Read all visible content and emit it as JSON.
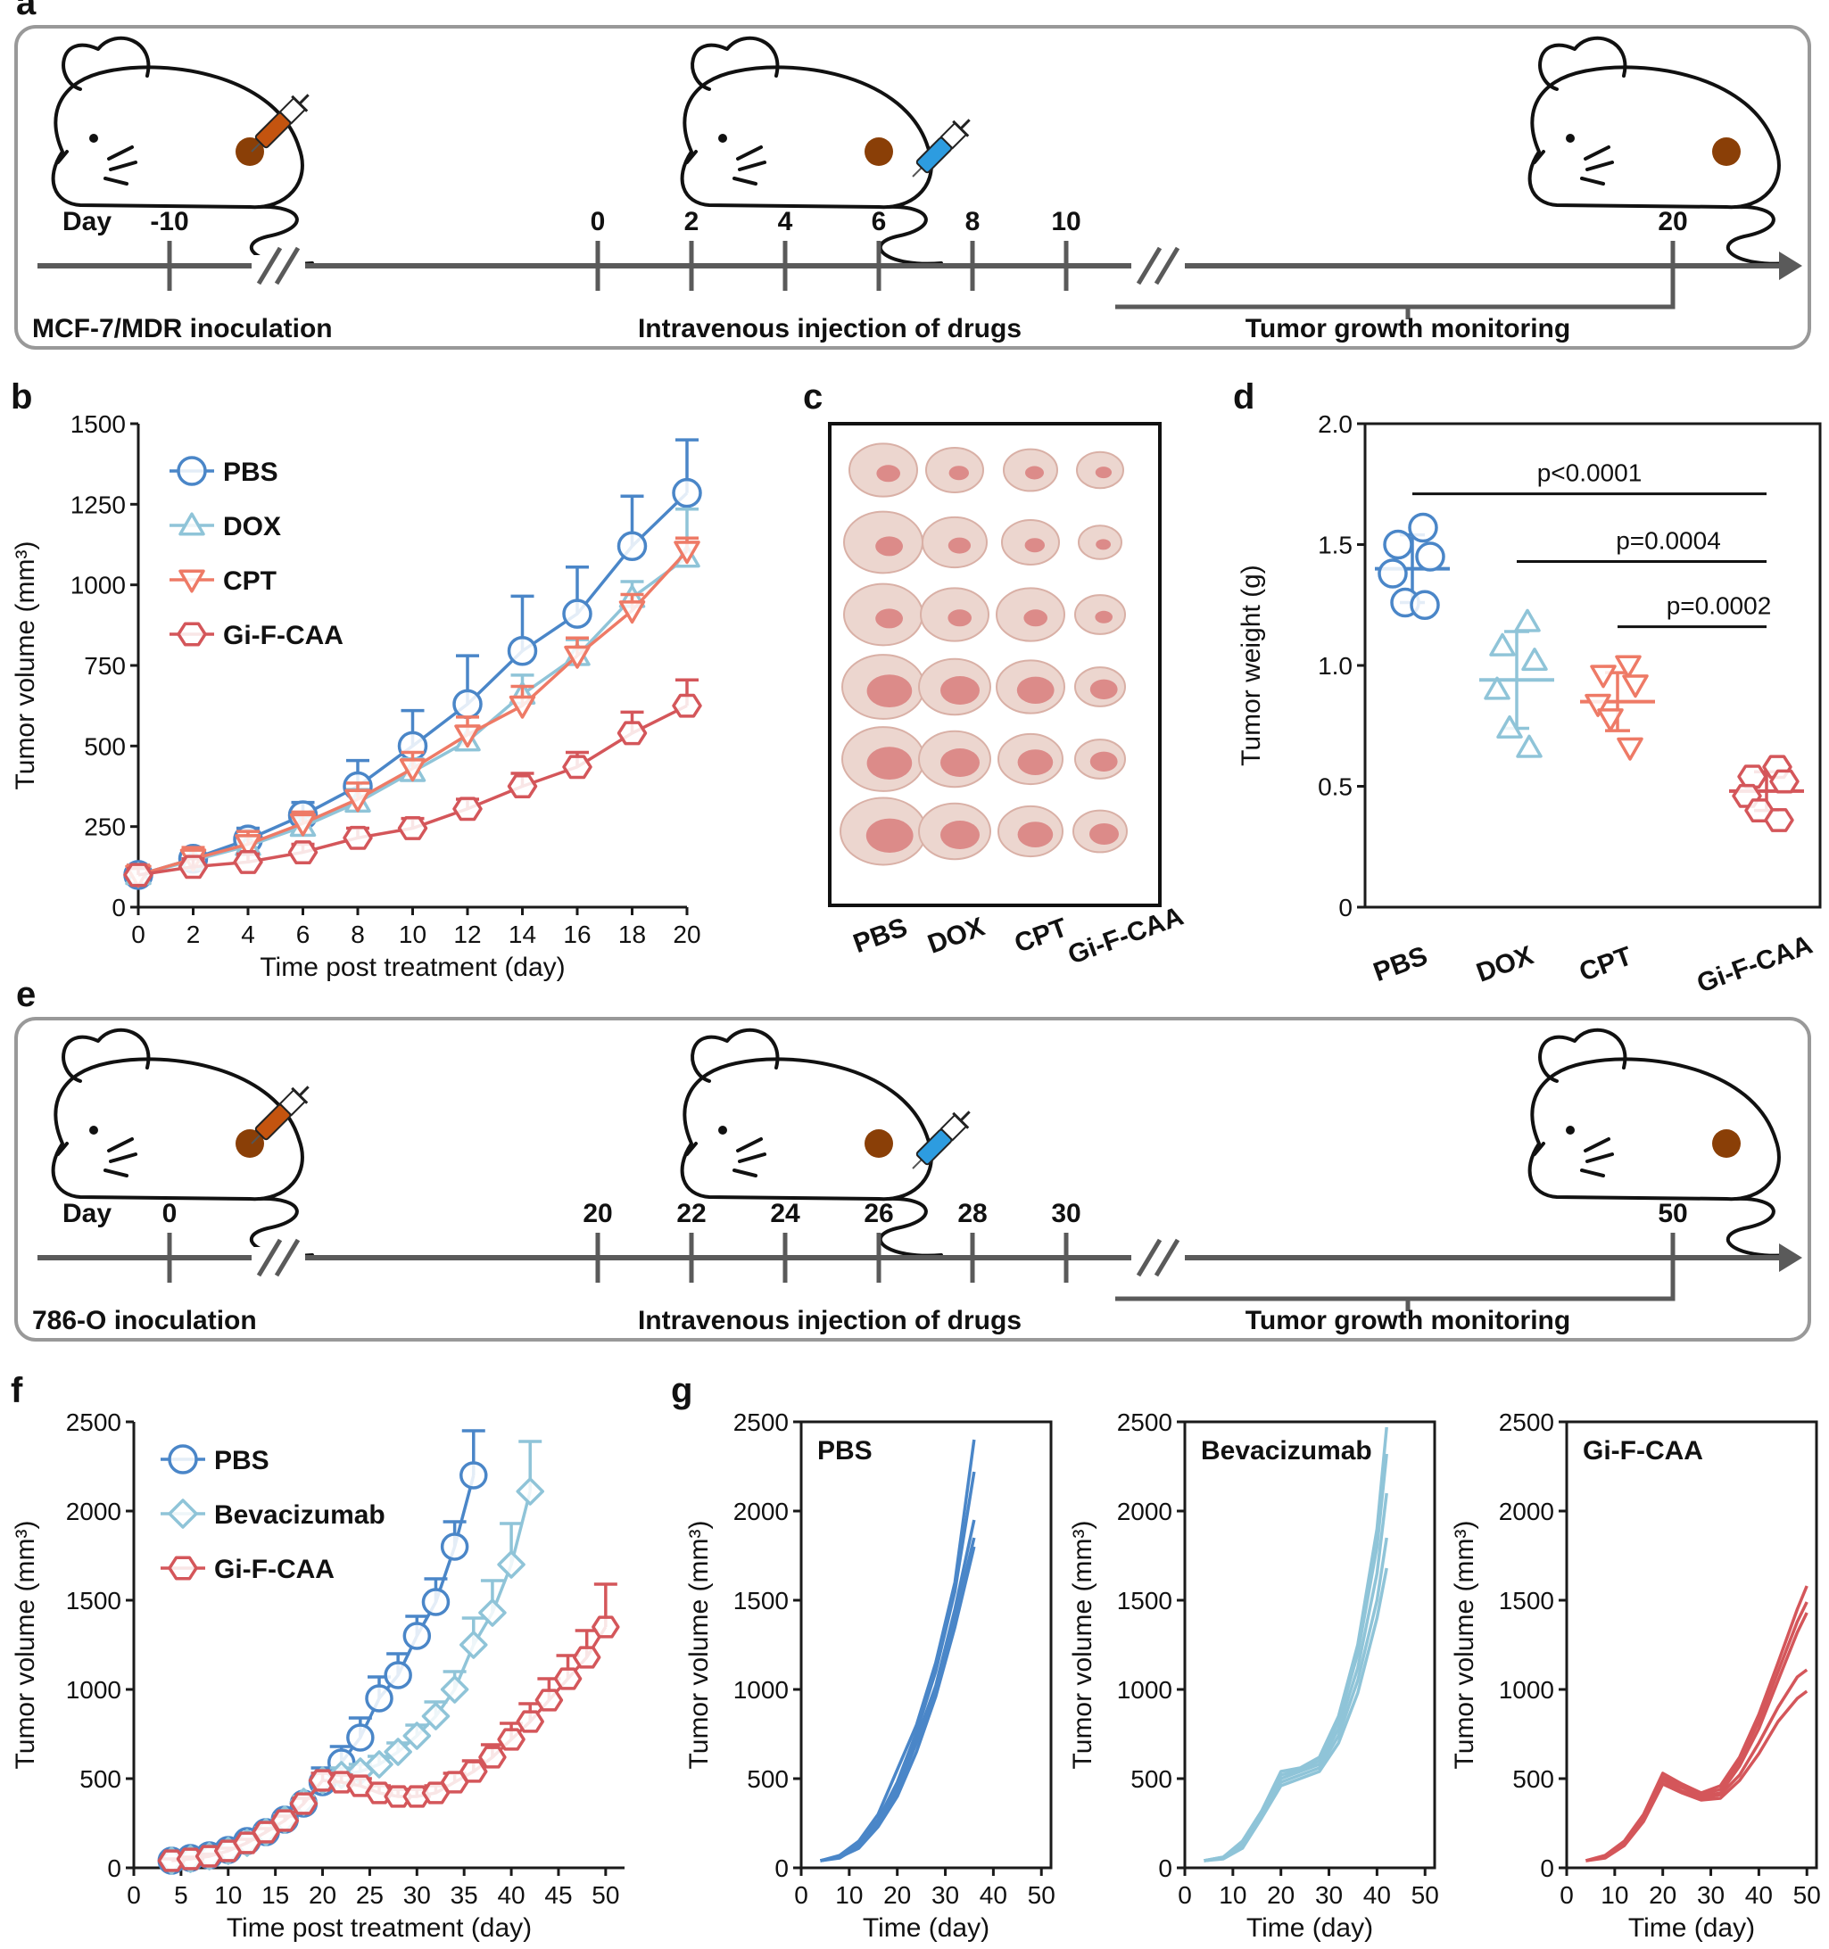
{
  "colors": {
    "pbs": "#4a86c8",
    "dox": "#8fc4d8",
    "cpt": "#ee7a66",
    "gifcaa": "#d4565a",
    "axis": "#1a1a1a",
    "timeline": "#5a5a5a",
    "box_border": "#999999",
    "tumor": "#8a3f07",
    "syringe_orange": "#c4540f",
    "syringe_blue": "#2d9ce0"
  },
  "panel_a": {
    "label": "a",
    "day_word": "Day",
    "ticks": [
      "-10",
      "0",
      "2",
      "4",
      "6",
      "8",
      "10",
      "20"
    ],
    "caption_left": "MCF-7/MDR  inoculation",
    "caption_mid": "Intravenous injection of drugs",
    "caption_right": "Tumor growth monitoring",
    "icons": [
      "mouse-icon",
      "syringe-icon",
      "tumor-icon"
    ]
  },
  "panel_e": {
    "label": "e",
    "day_word": "Day",
    "ticks": [
      "0",
      "20",
      "22",
      "24",
      "26",
      "28",
      "30",
      "50"
    ],
    "caption_left": "786-O  inoculation",
    "caption_mid": "Intravenous injection of drugs",
    "caption_right": "Tumor growth monitoring"
  },
  "panel_c": {
    "label": "c",
    "groups": [
      "PBS",
      "DOX",
      "CPT",
      "Gi-F-CAA"
    ],
    "rows": 6,
    "image": "tumor-photograph"
  },
  "chart_data": [
    {
      "panel": "b",
      "type": "line",
      "xlabel": "Time post treatment (day)",
      "ylabel": "Tumor volume (mm³)",
      "xlim": [
        0,
        20
      ],
      "ylim": [
        0,
        1500
      ],
      "xticks": [
        0,
        2,
        4,
        6,
        8,
        10,
        12,
        14,
        16,
        18,
        20
      ],
      "yticks": [
        0,
        250,
        500,
        750,
        1000,
        1250,
        1500
      ],
      "x": [
        0,
        2,
        4,
        6,
        8,
        10,
        12,
        14,
        16,
        18,
        20
      ],
      "legend_position": "top-left",
      "series": [
        {
          "name": "PBS",
          "marker": "circle",
          "color": "#4a86c8",
          "values": [
            100,
            150,
            210,
            285,
            375,
            500,
            630,
            795,
            910,
            1120,
            1285
          ],
          "errors": [
            30,
            30,
            35,
            40,
            80,
            110,
            150,
            170,
            145,
            155,
            165
          ]
        },
        {
          "name": "DOX",
          "marker": "triangle-up",
          "color": "#8fc4d8",
          "values": [
            100,
            145,
            190,
            250,
            325,
            420,
            515,
            660,
            780,
            960,
            1085
          ],
          "errors": [
            30,
            30,
            30,
            30,
            40,
            40,
            45,
            60,
            50,
            50,
            150
          ]
        },
        {
          "name": "CPT",
          "marker": "triangle-down",
          "color": "#ee7a66",
          "values": [
            100,
            150,
            195,
            260,
            335,
            430,
            535,
            625,
            780,
            920,
            1105
          ],
          "errors": [
            30,
            35,
            40,
            35,
            50,
            50,
            55,
            60,
            55,
            50,
            40
          ]
        },
        {
          "name": "Gi-F-CAA",
          "marker": "hexagon",
          "color": "#d4565a",
          "values": [
            100,
            125,
            140,
            170,
            215,
            245,
            305,
            375,
            435,
            540,
            625
          ],
          "errors": [
            20,
            25,
            25,
            25,
            30,
            30,
            30,
            40,
            45,
            65,
            80
          ]
        }
      ]
    },
    {
      "panel": "d",
      "type": "scatter",
      "ylabel": "Tumor weight (g)",
      "ylim": [
        0,
        2.0
      ],
      "yticks": [
        "0",
        "0.5",
        "1.0",
        "1.5",
        "2.0"
      ],
      "categories": [
        "PBS",
        "DOX",
        "CPT",
        "Gi-F-CAA"
      ],
      "groups": [
        {
          "name": "PBS",
          "marker": "circle",
          "color": "#4a86c8",
          "points": [
            1.57,
            1.5,
            1.45,
            1.38,
            1.26,
            1.25
          ],
          "mean": 1.4,
          "sd": 0.14
        },
        {
          "name": "DOX",
          "marker": "triangle-up",
          "color": "#8fc4d8",
          "points": [
            1.18,
            1.08,
            1.02,
            0.9,
            0.74,
            0.66
          ],
          "mean": 0.94,
          "sd": 0.2
        },
        {
          "name": "CPT",
          "marker": "triangle-down",
          "color": "#ee7a66",
          "points": [
            1.0,
            0.96,
            0.92,
            0.84,
            0.78,
            0.66
          ],
          "mean": 0.85,
          "sd": 0.12
        },
        {
          "name": "Gi-F-CAA",
          "marker": "hexagon",
          "color": "#d4565a",
          "points": [
            0.58,
            0.54,
            0.52,
            0.46,
            0.4,
            0.36
          ],
          "mean": 0.48,
          "sd": 0.08
        }
      ],
      "annotations": [
        {
          "text": "p<0.0001",
          "from": "PBS",
          "to": "Gi-F-CAA",
          "y": 1.71
        },
        {
          "text": "p=0.0004",
          "from": "DOX",
          "to": "Gi-F-CAA",
          "y": 1.43
        },
        {
          "text": "p=0.0002",
          "from": "CPT",
          "to": "Gi-F-CAA",
          "y": 1.16
        }
      ]
    },
    {
      "panel": "f",
      "type": "line",
      "xlabel": "Time post treatment (day)",
      "ylabel": "Tumor volume (mm³)",
      "xlim": [
        0,
        52
      ],
      "ylim": [
        0,
        2500
      ],
      "xticks": [
        0,
        5,
        10,
        15,
        20,
        25,
        30,
        35,
        40,
        45,
        50
      ],
      "yticks": [
        0,
        500,
        1000,
        1500,
        2000,
        2500
      ],
      "legend_position": "top-left",
      "series": [
        {
          "name": "PBS",
          "marker": "circle",
          "color": "#4a86c8",
          "x": [
            4,
            6,
            8,
            10,
            12,
            14,
            16,
            18,
            20,
            22,
            24,
            26,
            28,
            30,
            32,
            34,
            36
          ],
          "values": [
            40,
            55,
            70,
            100,
            150,
            200,
            270,
            360,
            480,
            590,
            730,
            950,
            1080,
            1300,
            1490,
            1800,
            2200
          ],
          "errors": [
            10,
            10,
            12,
            15,
            20,
            20,
            25,
            30,
            80,
            90,
            110,
            120,
            120,
            110,
            130,
            140,
            250
          ]
        },
        {
          "name": "Bevacizumab",
          "marker": "diamond",
          "color": "#8fc4d8",
          "x": [
            4,
            6,
            8,
            10,
            12,
            14,
            16,
            18,
            20,
            22,
            24,
            26,
            28,
            30,
            32,
            34,
            36,
            38,
            40,
            42
          ],
          "values": [
            40,
            50,
            65,
            95,
            140,
            200,
            270,
            370,
            490,
            520,
            540,
            580,
            650,
            740,
            850,
            1000,
            1250,
            1430,
            1700,
            2110
          ],
          "errors": [
            10,
            10,
            12,
            15,
            20,
            25,
            25,
            30,
            40,
            40,
            40,
            45,
            50,
            60,
            80,
            100,
            150,
            180,
            230,
            280
          ]
        },
        {
          "name": "Gi-F-CAA",
          "marker": "hexagon",
          "color": "#d4565a",
          "x": [
            4,
            6,
            8,
            10,
            12,
            14,
            16,
            18,
            20,
            22,
            24,
            26,
            28,
            30,
            32,
            34,
            36,
            38,
            40,
            42,
            44,
            46,
            48,
            50
          ],
          "values": [
            40,
            50,
            65,
            95,
            140,
            200,
            265,
            360,
            490,
            480,
            460,
            420,
            400,
            400,
            420,
            480,
            540,
            620,
            720,
            820,
            940,
            1060,
            1180,
            1350
          ],
          "errors": [
            10,
            10,
            12,
            15,
            20,
            20,
            25,
            30,
            40,
            40,
            40,
            40,
            40,
            40,
            40,
            50,
            60,
            70,
            90,
            100,
            120,
            130,
            150,
            240
          ]
        }
      ]
    },
    {
      "panel": "g",
      "type": "line",
      "xlabel": "Time (day)",
      "ylabel": "Tumor volume (mm³)",
      "xlim": [
        0,
        52
      ],
      "ylim": [
        0,
        2500
      ],
      "xticks": [
        0,
        10,
        20,
        30,
        40,
        50
      ],
      "yticks": [
        0,
        500,
        1000,
        1500,
        2000,
        2500
      ],
      "subplots": [
        {
          "title": "PBS",
          "color": "#4a86c8",
          "x": [
            4,
            8,
            12,
            16,
            20,
            24,
            28,
            32,
            36
          ],
          "lines": [
            [
              40,
              70,
              150,
              300,
              550,
              800,
              1150,
              1600,
              2400
            ],
            [
              40,
              60,
              140,
              270,
              480,
              760,
              1100,
              1550,
              2220
            ],
            [
              40,
              65,
              130,
              260,
              460,
              720,
              1020,
              1450,
              1950
            ],
            [
              40,
              55,
              120,
              250,
              430,
              700,
              1000,
              1400,
              1850
            ],
            [
              40,
              60,
              110,
              230,
              400,
              650,
              960,
              1350,
              1800
            ]
          ]
        },
        {
          "title": "Bevacizumab",
          "color": "#8fc4d8",
          "x": [
            4,
            8,
            12,
            16,
            20,
            24,
            28,
            32,
            36,
            40,
            42
          ],
          "lines": [
            [
              40,
              60,
              150,
              320,
              540,
              560,
              620,
              850,
              1250,
              1900,
              2470
            ],
            [
              40,
              60,
              140,
              310,
              520,
              550,
              600,
              820,
              1200,
              1800,
              2320
            ],
            [
              40,
              55,
              130,
              300,
              500,
              540,
              580,
              780,
              1120,
              1650,
              2100
            ],
            [
              40,
              55,
              120,
              290,
              480,
              520,
              560,
              740,
              1050,
              1500,
              1850
            ],
            [
              40,
              50,
              110,
              280,
              460,
              500,
              540,
              700,
              980,
              1400,
              1680
            ]
          ]
        },
        {
          "title": "Gi-F-CAA",
          "color": "#d4565a",
          "x": [
            4,
            8,
            12,
            16,
            20,
            24,
            28,
            32,
            36,
            40,
            44,
            48,
            50
          ],
          "lines": [
            [
              40,
              70,
              150,
              300,
              530,
              470,
              420,
              460,
              620,
              860,
              1150,
              1450,
              1580
            ],
            [
              40,
              65,
              140,
              290,
              510,
              460,
              410,
              440,
              600,
              820,
              1100,
              1380,
              1490
            ],
            [
              40,
              60,
              135,
              280,
              500,
              450,
              400,
              420,
              570,
              780,
              1050,
              1320,
              1430
            ],
            [
              40,
              60,
              130,
              270,
              490,
              430,
              390,
              410,
              520,
              700,
              900,
              1070,
              1110
            ],
            [
              40,
              55,
              125,
              260,
              470,
              420,
              380,
              390,
              490,
              640,
              820,
              950,
              990
            ]
          ]
        }
      ]
    }
  ]
}
